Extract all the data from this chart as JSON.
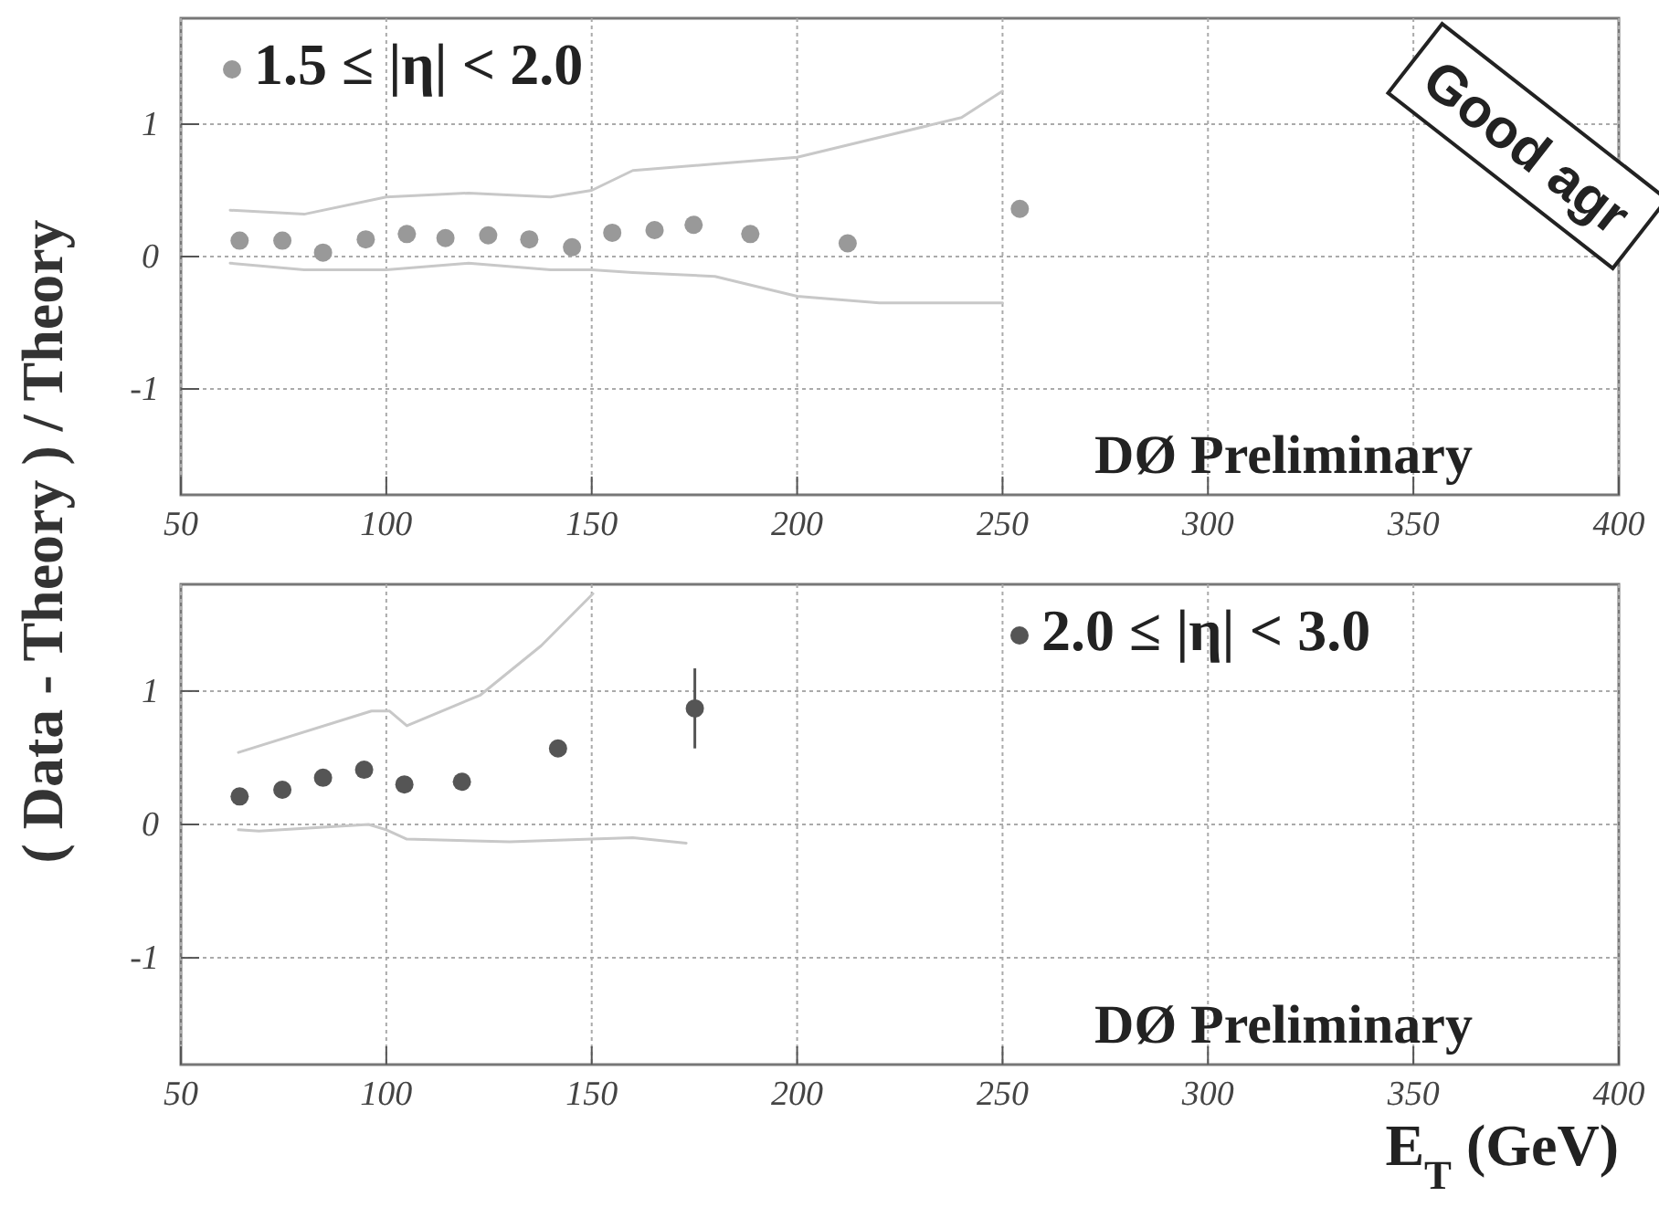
{
  "chart_data": [
    {
      "type": "scatter",
      "ylabel": "( Data - Theory ) / Theory",
      "xlim": [
        50,
        400
      ],
      "xticks": [
        50,
        100,
        150,
        200,
        250,
        300,
        350,
        400
      ],
      "ylim": [
        -1.8,
        1.8
      ],
      "yticks": [
        -1,
        0,
        1
      ],
      "grid": true,
      "legend": "top left",
      "marker": "circle",
      "annotations": [
        "DØ Preliminary",
        "Good agr"
      ],
      "series": [
        {
          "name": "1.5 ≤ |η| < 2.0",
          "color": "#999999",
          "x": [
            64.3,
            74.7,
            84.6,
            95,
            105,
            114.4,
            124.8,
            134.8,
            145.2,
            155,
            165.3,
            174.8,
            188.6,
            212.3,
            254.2
          ],
          "values": [
            0.12,
            0.12,
            0.03,
            0.13,
            0.17,
            0.14,
            0.16,
            0.13,
            0.07,
            0.18,
            0.2,
            0.24,
            0.17,
            0.1,
            0.36
          ]
        },
        {
          "type": "line",
          "marker": "none",
          "color": "#c8c8c8",
          "x": [
            62,
            80,
            100,
            120,
            140,
            150,
            160,
            180,
            200,
            220,
            240,
            250
          ],
          "values": [
            0.35,
            0.32,
            0.45,
            0.48,
            0.45,
            0.5,
            0.65,
            0.7,
            0.75,
            0.9,
            1.05,
            1.25
          ]
        },
        {
          "type": "line",
          "marker": "none",
          "color": "#c8c8c8",
          "x": [
            62,
            80,
            100,
            120,
            140,
            150,
            160,
            180,
            200,
            220,
            240,
            250
          ],
          "values": [
            -0.05,
            -0.1,
            -0.1,
            -0.05,
            -0.1,
            -0.1,
            -0.12,
            -0.15,
            -0.3,
            -0.35,
            -0.35,
            -0.35
          ]
        }
      ]
    },
    {
      "type": "scatter",
      "xlabel": "E$_{T}$ (GeV)",
      "xlim": [
        50,
        400
      ],
      "xticks": [
        50,
        100,
        150,
        200,
        250,
        300,
        350,
        400
      ],
      "ylim": [
        -1.8,
        1.8
      ],
      "yticks": [
        -1,
        0,
        1
      ],
      "grid": true,
      "legend": "top right",
      "marker": "circle",
      "annotations": [
        "DØ Preliminary"
      ],
      "series": [
        {
          "name": "2.0 ≤ |η| < 3.0",
          "color": "#555555",
          "x": [
            64.3,
            74.7,
            84.6,
            94.6,
            104.4,
            118.4,
            141.8,
            175.1
          ],
          "values": [
            0.21,
            0.26,
            0.35,
            0.41,
            0.3,
            0.32,
            0.57,
            0.87
          ],
          "errors": [
            null,
            null,
            null,
            null,
            null,
            null,
            null,
            0.3
          ]
        },
        {
          "type": "line",
          "marker": "none",
          "color": "#c8c8c8",
          "x": [
            64,
            96.4,
            100.8,
            105,
            122.9,
            137.7,
            150.3
          ],
          "values": [
            0.54,
            0.85,
            0.85,
            0.74,
            0.97,
            1.34,
            1.73
          ]
        },
        {
          "type": "line",
          "marker": "none",
          "color": "#c8c8c8",
          "x": [
            64,
            69,
            95.7,
            100,
            105,
            130,
            160,
            173
          ],
          "values": [
            -0.04,
            -0.05,
            0,
            -0.04,
            -0.11,
            -0.13,
            -0.1,
            -0.14
          ]
        }
      ]
    }
  ]
}
